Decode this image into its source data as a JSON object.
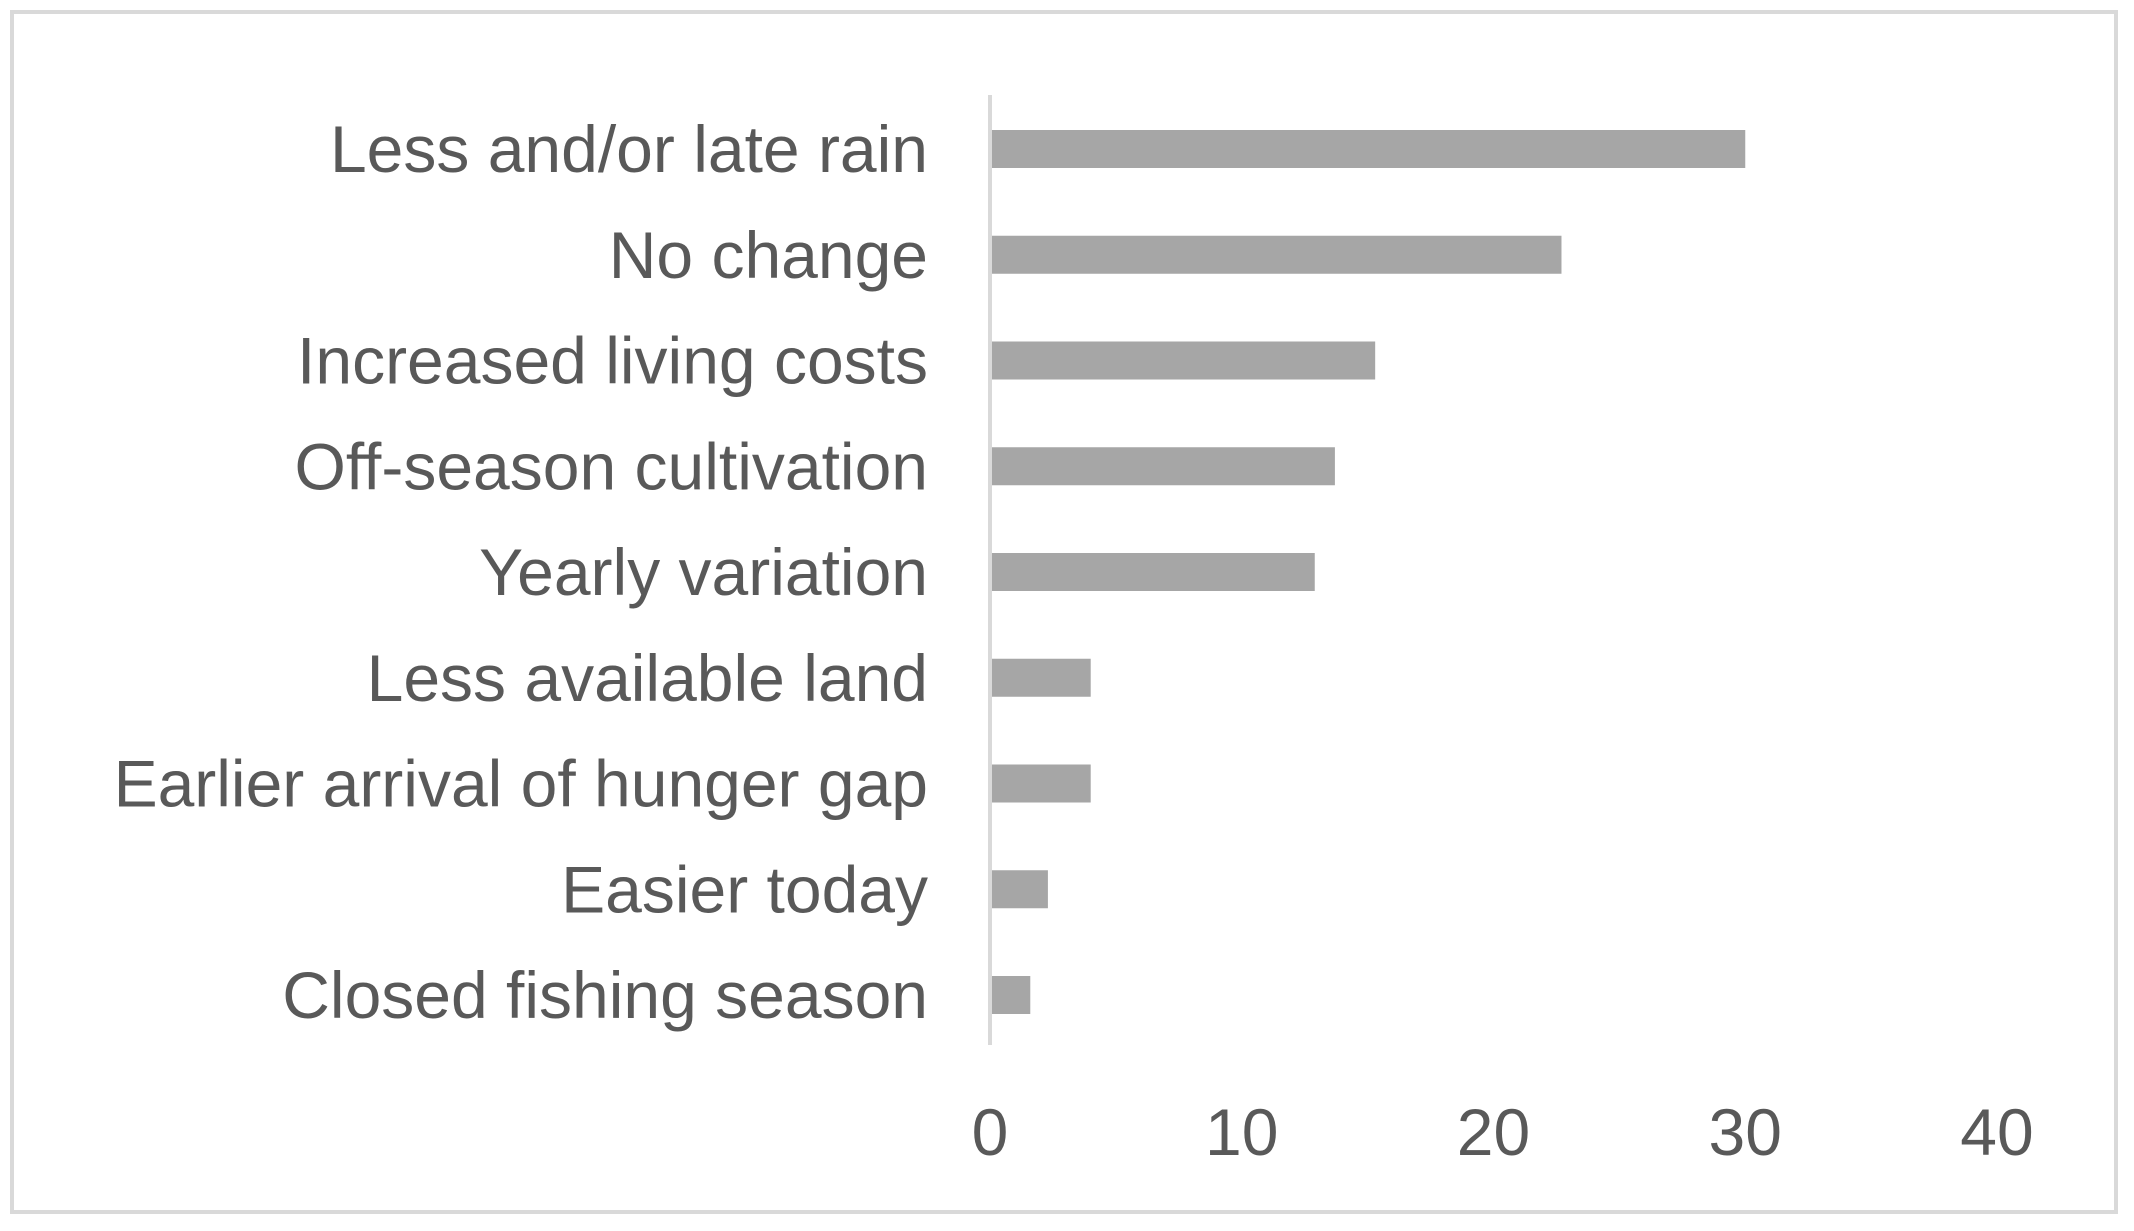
{
  "chart_data": {
    "type": "bar",
    "orientation": "horizontal",
    "title": "",
    "xlabel": "",
    "ylabel": "",
    "categories": [
      "Less and/or late rain",
      "No change",
      "Increased living costs",
      "Off-season cultivation",
      "Yearly variation",
      "Less available land",
      "Earlier arrival of hunger gap",
      "Easier today",
      "Closed fishing season"
    ],
    "values": [
      30,
      22.7,
      15.3,
      13.7,
      12.9,
      4,
      4,
      2.3,
      1.6
    ],
    "xlim": [
      0,
      40
    ],
    "xticks": [
      0,
      10,
      20,
      30,
      40
    ],
    "grid": false,
    "legend": "none",
    "bar_color": "#a6a6a6",
    "axis_color": "#d9d9d9",
    "text_color": "#595959"
  }
}
